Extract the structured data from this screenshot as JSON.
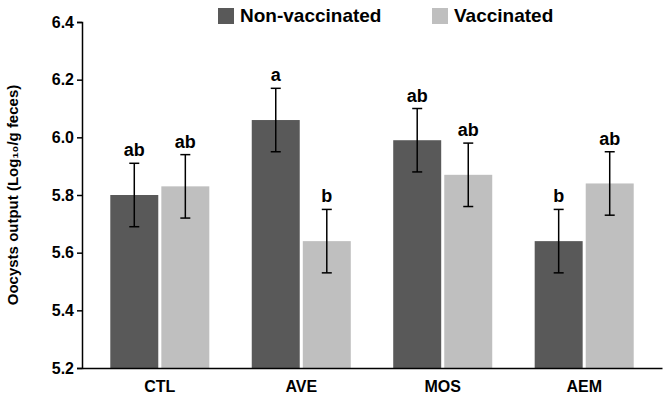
{
  "chart_data": {
    "type": "bar",
    "categories": [
      "CTL",
      "AVE",
      "MOS",
      "AEM"
    ],
    "y_label": "Oocysts output (Log₁₀/g feces)",
    "ylim": [
      5.2,
      6.4
    ],
    "yticks": [
      5.2,
      5.4,
      5.6,
      5.8,
      {
        "value": 6,
        "label": "6.0"
      },
      6.2,
      6.4
    ],
    "legend": "top",
    "grid": false,
    "series": [
      {
        "name": "Non-vaccinated",
        "color": "#595959",
        "values": [
          5.8,
          6.06,
          5.99,
          5.64
        ],
        "errors": [
          0.11,
          0.11,
          0.11,
          0.11
        ],
        "letters": [
          "ab",
          "a",
          "ab",
          "b"
        ]
      },
      {
        "name": "Vaccinated",
        "color": "#bfbfbf",
        "values": [
          5.83,
          5.64,
          5.87,
          5.84
        ],
        "errors": [
          0.11,
          0.11,
          0.11,
          0.11
        ],
        "letters": [
          "ab",
          "b",
          "ab",
          "ab"
        ]
      }
    ]
  }
}
